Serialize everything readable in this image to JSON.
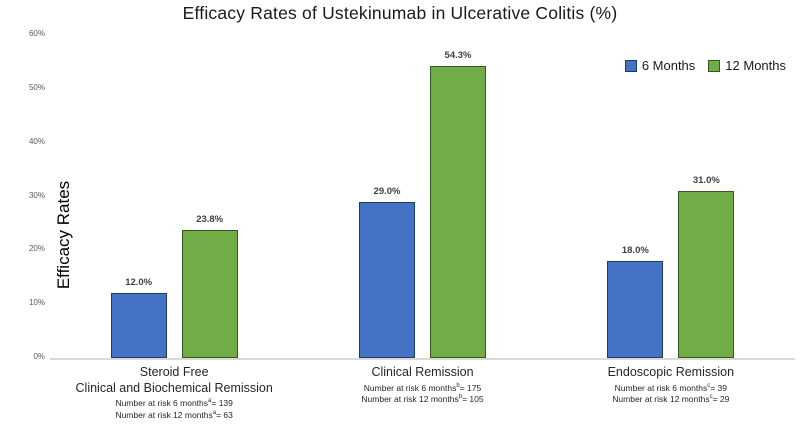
{
  "chart_data": {
    "type": "bar",
    "title": "Efficacy Rates of Ustekinumab in Ulcerative Colitis (%)",
    "ylabel": "Efficacy Rates",
    "xlabel": "",
    "ylim": [
      0,
      60
    ],
    "ytick_values": [
      0,
      10,
      20,
      30,
      40,
      50,
      60
    ],
    "ytick_labels": [
      "0%",
      "10%",
      "20%",
      "30%",
      "40%",
      "50%",
      "60%"
    ],
    "grid": false,
    "legend_position": "top-right",
    "background_color": "#ffffff",
    "baseline_color": "#d9d9d9",
    "categories": [
      {
        "label_lines": [
          "Steroid Free",
          "Clinical and Biochemical Remission"
        ],
        "annotations": [
          {
            "before": "Number at risk 6 months",
            "sup": "a",
            "after": "= 139"
          },
          {
            "before": "Number at risk 12 months",
            "sup": "a",
            "after": "= 63"
          }
        ]
      },
      {
        "label_lines": [
          "Clinical Remission"
        ],
        "annotations": [
          {
            "before": "Number at risk 6 months",
            "sup": "b",
            "after": "= 175"
          },
          {
            "before": "Number at risk 12 months",
            "sup": "b",
            "after": "= 105"
          }
        ]
      },
      {
        "label_lines": [
          "Endoscopic Remission"
        ],
        "annotations": [
          {
            "before": "Number at risk 6 months",
            "sup": "c",
            "after": "= 39"
          },
          {
            "before": "Number at risk 12 months",
            "sup": "c",
            "after": "= 29"
          }
        ]
      }
    ],
    "series": [
      {
        "name": "6 Months",
        "color": "#4472C4",
        "border_color": "#1F3864",
        "values": [
          12.0,
          29.0,
          18.0
        ],
        "labels": [
          "12.0%",
          "29.0%",
          "18.0%"
        ]
      },
      {
        "name": "12 Months",
        "color": "#70AD47",
        "border_color": "#375623",
        "values": [
          23.8,
          54.3,
          31.0
        ],
        "labels": [
          "23.8%",
          "54.3%",
          "31.0%"
        ]
      }
    ]
  }
}
